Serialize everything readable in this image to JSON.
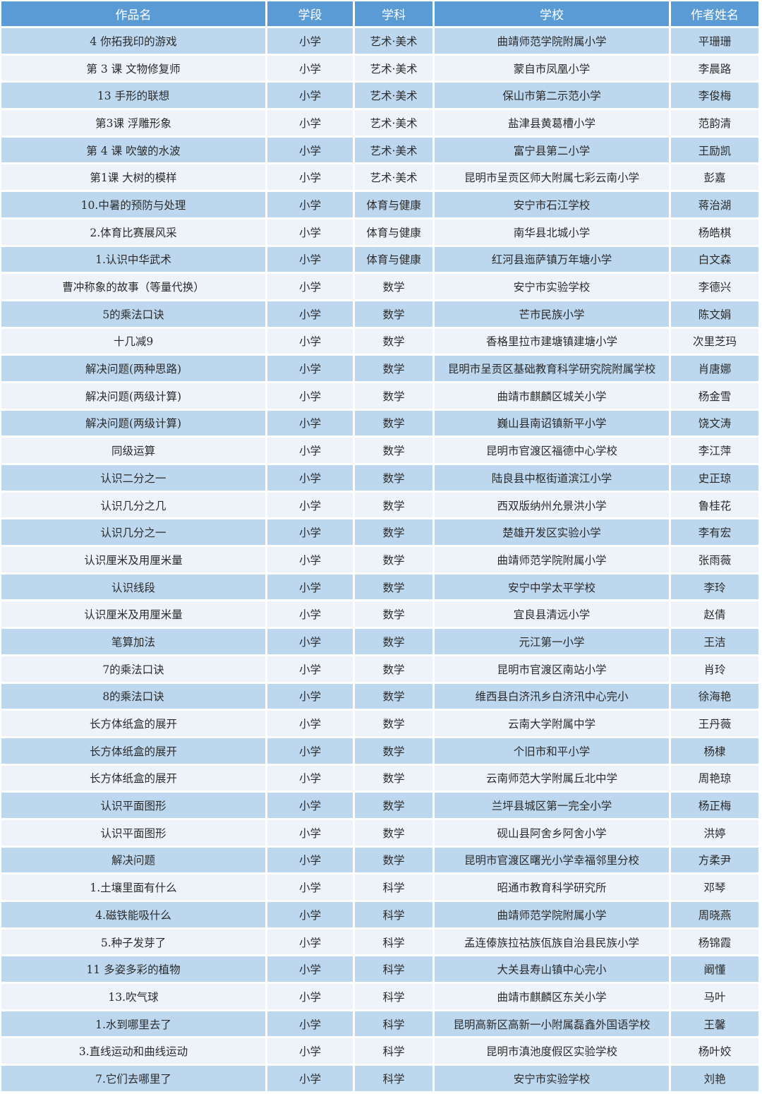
{
  "colors": {
    "header": "#5b9bd5",
    "row_dark": "#bdd7ee",
    "row_light": "#eef3fa"
  },
  "table": {
    "headers": [
      "作品名",
      "学段",
      "学科",
      "学校",
      "作者姓名"
    ],
    "rows": [
      [
        "4 你拓我印的游戏",
        "小学",
        "艺术·美术",
        "曲靖师范学院附属小学",
        "平珊珊"
      ],
      [
        "第 3 课 文物修复师",
        "小学",
        "艺术·美术",
        "蒙自市凤凰小学",
        "李晨路"
      ],
      [
        "13 手形的联想",
        "小学",
        "艺术·美术",
        "保山市第二示范小学",
        "李俊梅"
      ],
      [
        "第3课 浮雕形象",
        "小学",
        "艺术·美术",
        "盐津县黄葛槽小学",
        "范韵清"
      ],
      [
        "第 4 课 吹皱的水波",
        "小学",
        "艺术·美术",
        "富宁县第二小学",
        "王励凯"
      ],
      [
        "第1课 大树的模样",
        "小学",
        "艺术·美术",
        "昆明市呈贡区师大附属七彩云南小学",
        "彭嘉"
      ],
      [
        "10.中暑的预防与处理",
        "小学",
        "体育与健康",
        "安宁市石江学校",
        "蒋治湖"
      ],
      [
        "2.体育比赛展风采",
        "小学",
        "体育与健康",
        "南华县北城小学",
        "杨皓棋"
      ],
      [
        "1.认识中华武术",
        "小学",
        "体育与健康",
        "红河县迤萨镇万年塘小学",
        "白文森"
      ],
      [
        "曹冲称象的故事（等量代换）",
        "小学",
        "数学",
        "安宁市实验学校",
        "李德兴"
      ],
      [
        "5的乘法口诀",
        "小学",
        "数学",
        "芒市民族小学",
        "陈文娟"
      ],
      [
        "十几减9",
        "小学",
        "数学",
        "香格里拉市建塘镇建塘小学",
        "次里芝玛"
      ],
      [
        "解决问题(两种思路)",
        "小学",
        "数学",
        "昆明市呈贡区基础教育科学研究院附属学校",
        "肖唐娜"
      ],
      [
        "解决问题(两级计算)",
        "小学",
        "数学",
        "曲靖市麒麟区城关小学",
        "杨金雪"
      ],
      [
        "解决问题(两级计算)",
        "小学",
        "数学",
        "巍山县南诏镇新平小学",
        "饶文涛"
      ],
      [
        "同级运算",
        "小学",
        "数学",
        "昆明市官渡区福德中心学校",
        "李江萍"
      ],
      [
        "认识二分之一",
        "小学",
        "数学",
        "陆良县中枢街道滨江小学",
        "史正琼"
      ],
      [
        "认识几分之几",
        "小学",
        "数学",
        "西双版纳州允景洪小学",
        "鲁桂花"
      ],
      [
        "认识几分之一",
        "小学",
        "数学",
        "楚雄开发区实验小学",
        "李有宏"
      ],
      [
        "认识厘米及用厘米量",
        "小学",
        "数学",
        "曲靖师范学院附属小学",
        "张雨薇"
      ],
      [
        "认识线段",
        "小学",
        "数学",
        "安宁中学太平学校",
        "李玲"
      ],
      [
        "认识厘米及用厘米量",
        "小学",
        "数学",
        "宜良县清远小学",
        "赵倩"
      ],
      [
        "笔算加法",
        "小学",
        "数学",
        "元江第一小学",
        "王洁"
      ],
      [
        "7的乘法口诀",
        "小学",
        "数学",
        "昆明市官渡区南站小学",
        "肖玲"
      ],
      [
        "8的乘法口诀",
        "小学",
        "数学",
        "维西县白济汛乡白济汛中心完小",
        "徐海艳"
      ],
      [
        "长方体纸盒的展开",
        "小学",
        "数学",
        "云南大学附属中学",
        "王丹薇"
      ],
      [
        "长方体纸盒的展开",
        "小学",
        "数学",
        "个旧市和平小学",
        "杨棣"
      ],
      [
        "长方体纸盒的展开",
        "小学",
        "数学",
        "云南师范大学附属丘北中学",
        "周艳琼"
      ],
      [
        "认识平面图形",
        "小学",
        "数学",
        "兰坪县城区第一完全小学",
        "杨正梅"
      ],
      [
        "认识平面图形",
        "小学",
        "数学",
        "砚山县阿舍乡阿舍小学",
        "洪婷"
      ],
      [
        "解决问题",
        "小学",
        "数学",
        "昆明市官渡区曙光小学幸福邻里分校",
        "方柔尹"
      ],
      [
        "1.土壤里面有什么",
        "小学",
        "科学",
        "昭通市教育科学研究所",
        "邓琴"
      ],
      [
        "4.磁铁能吸什么",
        "小学",
        "科学",
        "曲靖师范学院附属小学",
        "周晓燕"
      ],
      [
        "5.种子发芽了",
        "小学",
        "科学",
        "孟连傣族拉祜族佤族自治县民族小学",
        "杨锦霞"
      ],
      [
        "11 多姿多彩的植物",
        "小学",
        "科学",
        "大关县寿山镇中心完小",
        "阚懂"
      ],
      [
        "13.吹气球",
        "小学",
        "科学",
        "曲靖市麒麟区东关小学",
        "马叶"
      ],
      [
        "1.水到哪里去了",
        "小学",
        "科学",
        "昆明高新区高新一小附属磊鑫外国语学校",
        "王馨"
      ],
      [
        "3.直线运动和曲线运动",
        "小学",
        "科学",
        "昆明市滇池度假区实验学校",
        "杨叶姣"
      ],
      [
        "7.它们去哪里了",
        "小学",
        "科学",
        "安宁市实验学校",
        "刘艳"
      ]
    ]
  }
}
